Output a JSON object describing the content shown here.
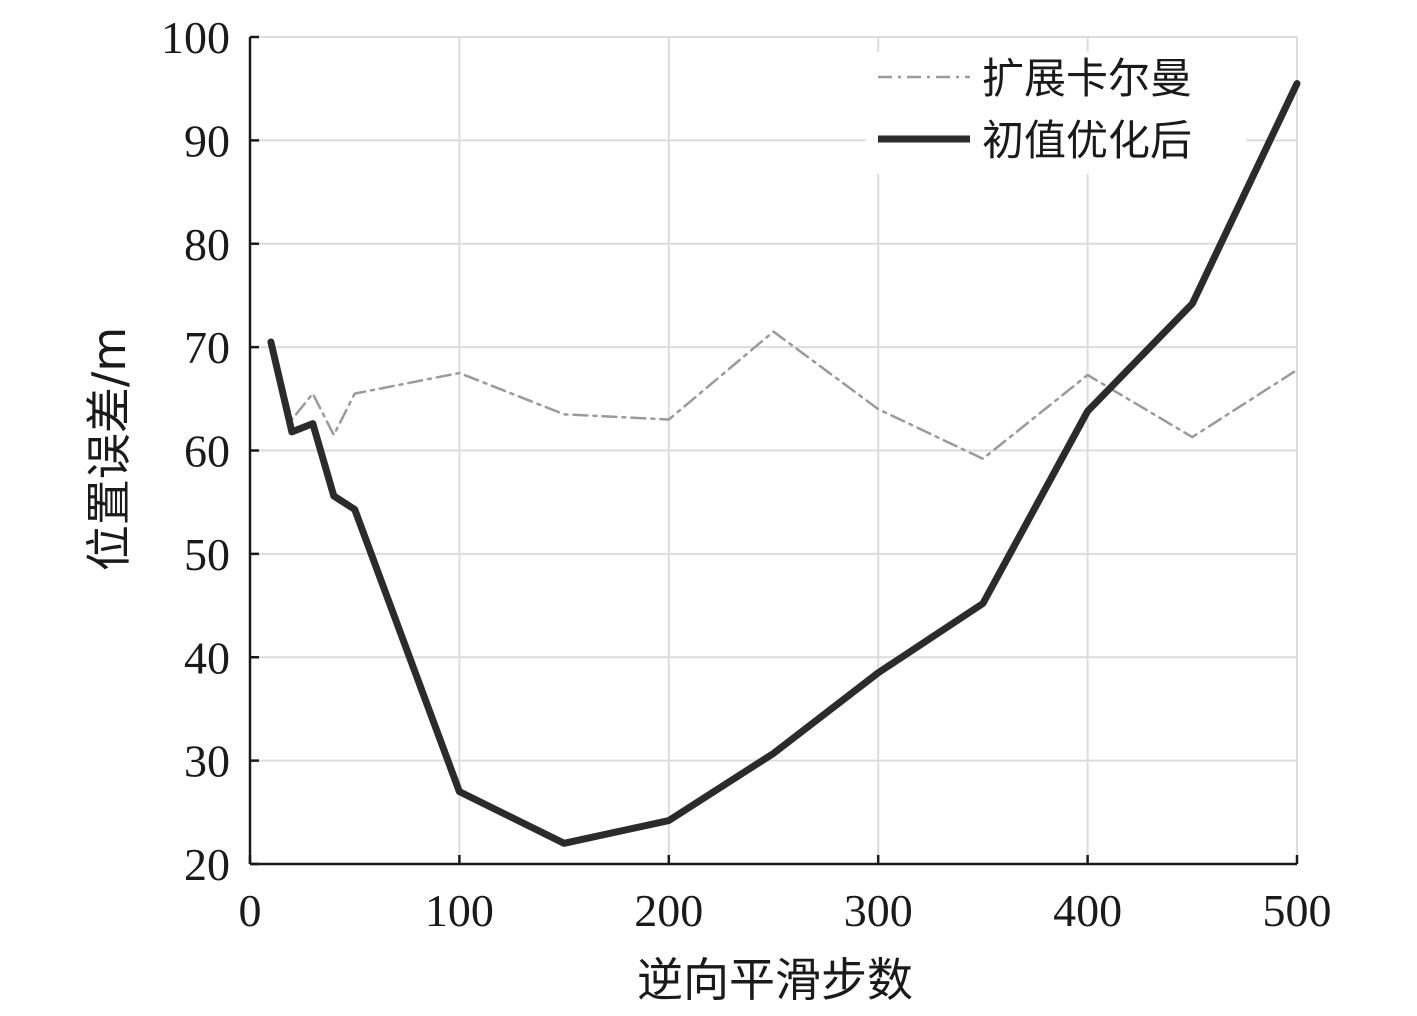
{
  "chart_data": {
    "type": "line",
    "title": "",
    "xlabel": "逆向平滑步数",
    "ylabel": "位置误差/m",
    "xlim": [
      0,
      500
    ],
    "ylim": [
      20,
      100
    ],
    "x_ticks": [
      "0",
      "100",
      "200",
      "300",
      "400",
      "500"
    ],
    "y_ticks": [
      "20",
      "30",
      "40",
      "50",
      "60",
      "70",
      "80",
      "90",
      "100"
    ],
    "grid": true,
    "legend_position": "top-right",
    "series": [
      {
        "name": "扩展卡尔曼",
        "style": "dash-dot",
        "color": "#9a9a9a",
        "x": [
          10,
          20,
          30,
          40,
          50,
          100,
          150,
          200,
          250,
          300,
          350,
          400,
          450,
          500
        ],
        "y": [
          70.5,
          63.0,
          65.5,
          61.5,
          65.5,
          67.5,
          63.5,
          63.0,
          71.5,
          64.0,
          59.2,
          67.3,
          61.3,
          67.8
        ]
      },
      {
        "name": "初值优化后",
        "style": "solid",
        "color": "#2b2b2b",
        "x": [
          10,
          20,
          30,
          40,
          50,
          100,
          150,
          200,
          250,
          300,
          350,
          400,
          450,
          500
        ],
        "y": [
          70.5,
          61.8,
          62.6,
          55.6,
          54.3,
          27.0,
          22.0,
          24.2,
          30.7,
          38.5,
          45.2,
          63.8,
          74.2,
          95.5
        ]
      }
    ]
  }
}
